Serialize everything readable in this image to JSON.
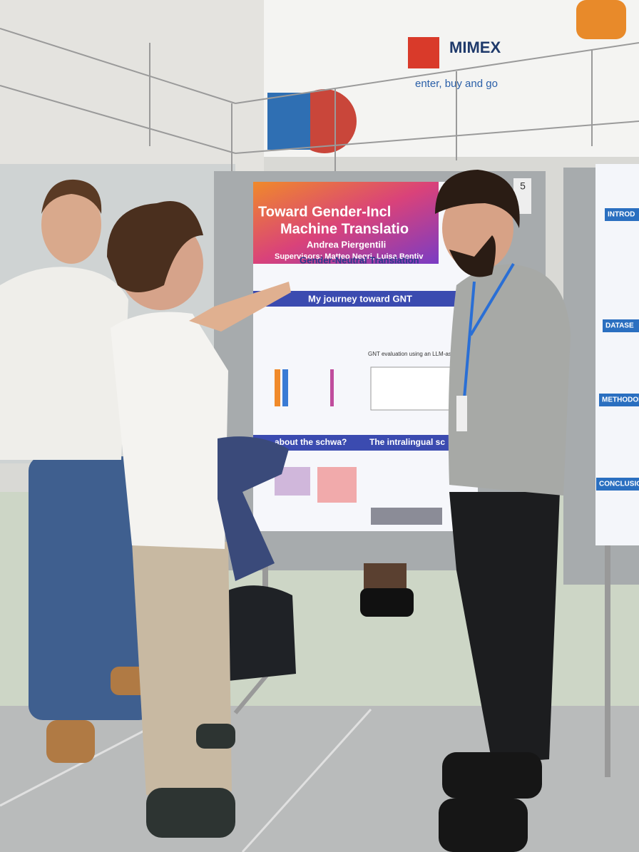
{
  "sign": {
    "brand": "MIMEX",
    "tagline": "enter, buy and go"
  },
  "poster": {
    "title_line1": "Toward Gender-Incl",
    "title_line2": "Machine Translatio",
    "author": "Andrea Piergentili",
    "supervisors": "Supervisors: Matteo Negri, Luisa Bentiv",
    "section1": "Gender-Neutral Translation",
    "section2": "My journey toward GNT",
    "section3": "GNT evaluation using an LLM-as-a-J",
    "section4": "about the schwa?",
    "section5": "The intralingual sc",
    "board_number": "5"
  },
  "side_poster": {
    "sections": [
      "INTROD",
      "DATASE",
      "METHODOL",
      "CONCLUSIO"
    ]
  }
}
